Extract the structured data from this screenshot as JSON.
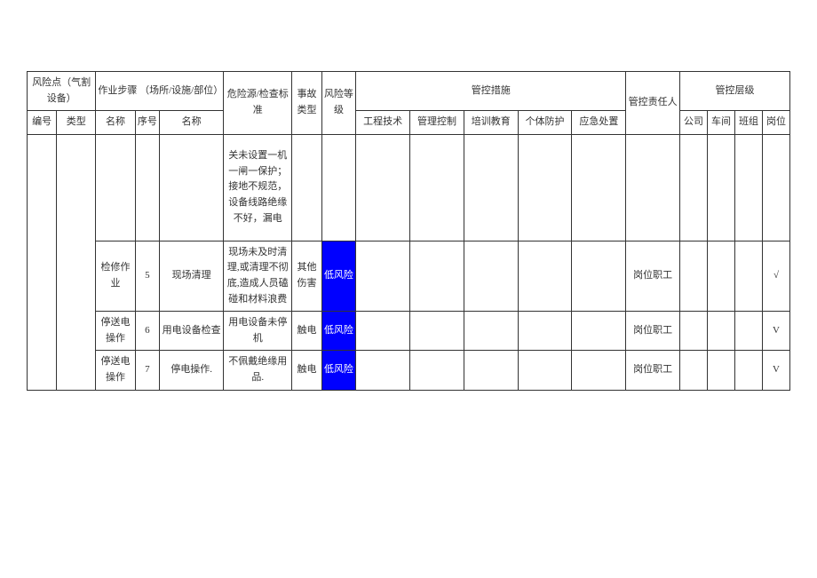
{
  "colors": {
    "page_bg": "#ffffff",
    "text": "#333333",
    "border": "#333333",
    "risk_low_bg": "#0000ff",
    "risk_low_text": "#ffffff"
  },
  "typography": {
    "font_family": "SimSun",
    "font_size_pt": 9,
    "line_height": 1.6
  },
  "headers": {
    "risk_point": "风险点（气割设备）",
    "work_step_group": "作业步骤\n（场所/设施/部位）",
    "hazard_std": "危险源/检查标准",
    "accident_type": "事故类型",
    "risk_level": "风险等级",
    "control_measures": "管控措施",
    "responsible": "管控责任人",
    "control_layer": "管控层级",
    "id": "编号",
    "type": "类型",
    "name": "名称",
    "seq": "序号",
    "step_name": "名称",
    "engineering": "工程技术",
    "management": "管理控制",
    "training": "培训教育",
    "ppe": "个体防护",
    "emergency": "应急处置",
    "company": "公司",
    "workshop": "车间",
    "team": "班组",
    "post": "岗位"
  },
  "rows": [
    {
      "id": "",
      "type": "",
      "step_name": "",
      "seq": "",
      "step": "",
      "hazard": "关未设置一机一闸一保护；接地不规范，设备线路绝缘不好，漏电",
      "accident": "",
      "level": "",
      "level_class": "",
      "engineering": "",
      "management": "",
      "training": "",
      "ppe": "",
      "emergency": "",
      "responsible": "",
      "company": "",
      "workshop": "",
      "team": "",
      "post": ""
    },
    {
      "id": "",
      "type": "",
      "step_name": "检修作业",
      "seq": "5",
      "step": "现场清理",
      "hazard": "现场未及时清理,或清理不彻底,造成人员磕碰和材料浪费",
      "accident": "其他伤害",
      "level": "低风险",
      "level_class": "risk-low",
      "engineering": "",
      "management": "",
      "training": "",
      "ppe": "",
      "emergency": "",
      "responsible": "岗位职工",
      "company": "",
      "workshop": "",
      "team": "",
      "post": "√"
    },
    {
      "id": "",
      "type": "",
      "step_name": "停送电操作",
      "seq": "6",
      "step": "用电设备检查",
      "hazard": "用电设备未停机",
      "accident": "触电",
      "level": "低风险",
      "level_class": "risk-low",
      "engineering": "",
      "management": "",
      "training": "",
      "ppe": "",
      "emergency": "",
      "responsible": "岗位职工",
      "company": "",
      "workshop": "",
      "team": "",
      "post": "V"
    },
    {
      "id": "",
      "type": "",
      "step_name": "停送电操作",
      "seq": "7",
      "step": "停电操作.",
      "hazard": "不佩戴绝缘用品.",
      "accident": "触电",
      "level": "低风险",
      "level_class": "risk-low",
      "engineering": "",
      "management": "",
      "training": "",
      "ppe": "",
      "emergency": "",
      "responsible": "岗位职工",
      "company": "",
      "workshop": "",
      "team": "",
      "post": "V"
    }
  ]
}
